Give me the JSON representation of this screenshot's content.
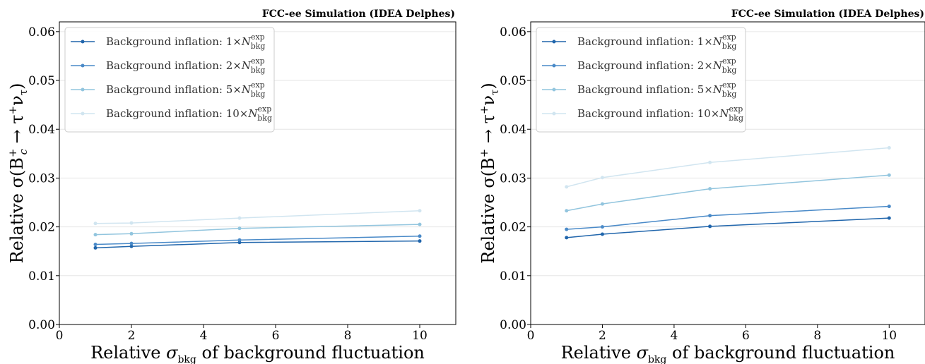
{
  "chart_data": [
    {
      "type": "line",
      "title": "FCC-ee Simulation (IDEA Delphes)",
      "xlabel": "Relative σ_bkg of background fluctuation",
      "ylabel": "Relative σ(B_c^+ → τ^+ν_τ)",
      "xlim": [
        0,
        11
      ],
      "ylim": [
        0,
        0.062
      ],
      "x_ticks": [
        "0",
        "2",
        "4",
        "6",
        "8",
        "10"
      ],
      "y_ticks": [
        "0.00",
        "0.01",
        "0.02",
        "0.03",
        "0.04",
        "0.05",
        "0.06"
      ],
      "grid": "horizontal",
      "legend_position": "top-left",
      "x": [
        1,
        2,
        5,
        10
      ],
      "series": [
        {
          "name": "Background inflation: 1×N_bkg^exp",
          "values": [
            0.0157,
            0.016,
            0.0168,
            0.0171
          ],
          "color": "#2166ac"
        },
        {
          "name": "Background inflation: 2×N_bkg^exp",
          "values": [
            0.0164,
            0.0166,
            0.0173,
            0.0181
          ],
          "color": "#4a8ac8"
        },
        {
          "name": "Background inflation: 5×N_bkg^exp",
          "values": [
            0.0184,
            0.0186,
            0.0197,
            0.0205
          ],
          "color": "#92c5de"
        },
        {
          "name": "Background inflation: 10×N_bkg^exp",
          "values": [
            0.0207,
            0.0208,
            0.0218,
            0.0233
          ],
          "color": "#d1e5f0"
        }
      ]
    },
    {
      "type": "line",
      "title": "FCC-ee Simulation (IDEA Delphes)",
      "xlabel": "Relative σ_bkg of background fluctuation",
      "ylabel": "Relative σ(B^+ → τ^+ν_τ)",
      "xlim": [
        0,
        11
      ],
      "ylim": [
        0,
        0.062
      ],
      "x_ticks": [
        "0",
        "2",
        "4",
        "6",
        "8",
        "10"
      ],
      "y_ticks": [
        "0.00",
        "0.01",
        "0.02",
        "0.03",
        "0.04",
        "0.05",
        "0.06"
      ],
      "grid": "horizontal",
      "legend_position": "top-left",
      "x": [
        1,
        2,
        5,
        10
      ],
      "series": [
        {
          "name": "Background inflation: 1×N_bkg^exp",
          "values": [
            0.0178,
            0.0185,
            0.0201,
            0.0218
          ],
          "color": "#2166ac"
        },
        {
          "name": "Background inflation: 2×N_bkg^exp",
          "values": [
            0.0195,
            0.02,
            0.0223,
            0.0242
          ],
          "color": "#4a8ac8"
        },
        {
          "name": "Background inflation: 5×N_bkg^exp",
          "values": [
            0.0233,
            0.0247,
            0.0278,
            0.0306
          ],
          "color": "#92c5de"
        },
        {
          "name": "Background inflation: 10×N_bkg^exp",
          "values": [
            0.0282,
            0.0301,
            0.0332,
            0.0362
          ],
          "color": "#d1e5f0"
        }
      ]
    }
  ],
  "legend_text": {
    "prefix": "Background inflation: ",
    "factors": [
      "1×",
      "2×",
      "5×",
      "10×"
    ],
    "symbol": "N",
    "sub": "bkg",
    "sup": "exp"
  },
  "axis_text": {
    "xlabel_prefix": "Relative ",
    "xlabel_sigma": "σ",
    "xlabel_sub": "bkg",
    "xlabel_suffix": " of background fluctuation",
    "ylabel_left_main": "Relative σ(B",
    "ylabel_left_sub": "c",
    "ylabel_sup": "+",
    "ylabel_arrow": " → τ",
    "ylabel_nu": "ν",
    "ylabel_tau_sub": "τ",
    "ylabel_close": ")",
    "ylabel_right_main": "Relative σ(B"
  }
}
